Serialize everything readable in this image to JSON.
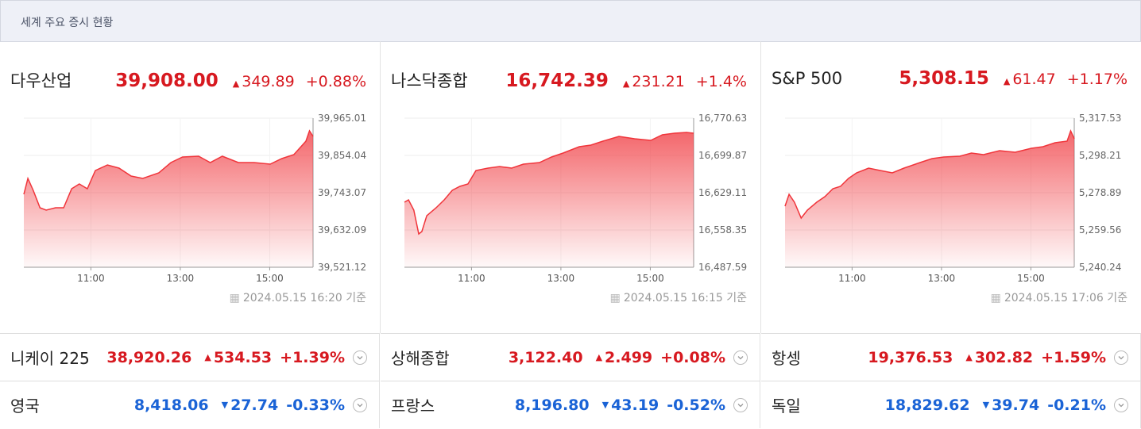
{
  "header": {
    "title": "세계 주요 증시 현황"
  },
  "panels": [
    {
      "name": "다우산업",
      "price": "39,908.00",
      "arrow": "▲",
      "change": "349.89",
      "change_pct": "+0.88%",
      "color": "#d71920",
      "timestamp": "2024.05.15 16:20 기준",
      "chart_data": {
        "type": "line",
        "x": [
          9.5,
          9.59,
          9.71,
          9.86,
          10.0,
          10.21,
          10.39,
          10.57,
          10.74,
          10.92,
          11.1,
          11.37,
          11.63,
          11.9,
          12.16,
          12.52,
          12.79,
          13.05,
          13.41,
          13.67,
          13.94,
          14.3,
          14.65,
          15.01,
          15.27,
          15.54,
          15.81,
          15.89,
          15.97
        ],
        "series": [
          {
            "color": "#f0353b",
            "values": [
              39738.3,
              39785.5,
              39750.1,
              39698.2,
              39691.1,
              39698.2,
              39698.2,
              39754.8,
              39769.0,
              39754.8,
              39809.1,
              39825.7,
              39816.2,
              39792.6,
              39785.5,
              39802.1,
              39832.8,
              39849.3,
              39851.6,
              39832.8,
              39851.6,
              39832.8,
              39832.8,
              39828.0,
              39844.6,
              39856.4,
              39896.5,
              39927.2,
              39910.7
            ]
          }
        ],
        "xlim": [
          9.5,
          15.97
        ],
        "xticks": [
          {
            "value": 11,
            "label": "11:00"
          },
          {
            "value": 13,
            "label": "13:00"
          },
          {
            "value": 15,
            "label": "15:00"
          }
        ],
        "ylim": [
          39521.12,
          39965.01
        ],
        "yticks": [
          {
            "value": 39521.12,
            "label": "39,521.12"
          },
          {
            "value": 39632.09,
            "label": "39,632.09"
          },
          {
            "value": 39743.07,
            "label": "39,743.07"
          },
          {
            "value": 39854.04,
            "label": "39,854.04"
          },
          {
            "value": 39965.01,
            "label": "39,965.01"
          }
        ],
        "grid": true
      }
    },
    {
      "name": "나스닥종합",
      "price": "16,742.39",
      "arrow": "▲",
      "change": "231.21",
      "change_pct": "+1.4%",
      "color": "#d71920",
      "timestamp": "2024.05.15 16:15 기준",
      "chart_data": {
        "type": "line",
        "x": [
          9.5,
          9.59,
          9.71,
          9.82,
          9.89,
          10.0,
          10.21,
          10.39,
          10.57,
          10.74,
          10.92,
          11.1,
          11.37,
          11.63,
          11.9,
          12.16,
          12.52,
          12.79,
          13.05,
          13.41,
          13.67,
          13.94,
          14.3,
          14.65,
          15.01,
          15.27,
          15.54,
          15.81,
          15.97
        ],
        "series": [
          {
            "color": "#f0353b",
            "values": [
              16611.1,
              16615.6,
              16596.0,
              16550.8,
              16555.3,
              16585.5,
              16600.5,
              16615.6,
              16633.6,
              16641.2,
              16645.7,
              16671.3,
              16675.8,
              16678.8,
              16675.8,
              16683.3,
              16686.3,
              16696.9,
              16704.4,
              16716.4,
              16719.4,
              16727.0,
              16736.0,
              16731.5,
              16728.5,
              16739.0,
              16742.0,
              16743.5,
              16742.0
            ]
          }
        ],
        "xlim": [
          9.5,
          15.97
        ],
        "xticks": [
          {
            "value": 11,
            "label": "11:00"
          },
          {
            "value": 13,
            "label": "13:00"
          },
          {
            "value": 15,
            "label": "15:00"
          }
        ],
        "ylim": [
          16487.59,
          16770.63
        ],
        "yticks": [
          {
            "value": 16487.59,
            "label": "16,487.59"
          },
          {
            "value": 16558.35,
            "label": "16,558.35"
          },
          {
            "value": 16629.11,
            "label": "16,629.11"
          },
          {
            "value": 16699.87,
            "label": "16,699.87"
          },
          {
            "value": 16770.63,
            "label": "16,770.63"
          }
        ],
        "grid": true
      }
    },
    {
      "name": "S&P 500",
      "price": "5,308.15",
      "arrow": "▲",
      "change": "61.47",
      "change_pct": "+1.17%",
      "color": "#d71920",
      "timestamp": "2024.05.15 17:06 기준",
      "chart_data": {
        "type": "line",
        "x": [
          9.5,
          9.59,
          9.71,
          9.86,
          10.0,
          10.21,
          10.39,
          10.57,
          10.74,
          10.92,
          11.1,
          11.37,
          11.63,
          11.9,
          12.16,
          12.52,
          12.79,
          13.05,
          13.41,
          13.67,
          13.94,
          14.3,
          14.65,
          15.01,
          15.27,
          15.54,
          15.81,
          15.89,
          15.97
        ],
        "series": [
          {
            "color": "#f0353b",
            "values": [
              5271.9,
              5278.06,
              5273.95,
              5265.73,
              5269.84,
              5273.95,
              5276.83,
              5280.94,
              5282.17,
              5286.28,
              5289.16,
              5291.63,
              5290.39,
              5289.16,
              5291.63,
              5294.51,
              5296.56,
              5297.38,
              5297.79,
              5299.44,
              5298.62,
              5300.67,
              5299.85,
              5301.91,
              5302.73,
              5304.78,
              5305.6,
              5310.95,
              5306.84
            ]
          }
        ],
        "xlim": [
          9.5,
          15.97
        ],
        "xticks": [
          {
            "value": 11,
            "label": "11:00"
          },
          {
            "value": 13,
            "label": "13:00"
          },
          {
            "value": 15,
            "label": "15:00"
          }
        ],
        "ylim": [
          5240.24,
          5317.53
        ],
        "yticks": [
          {
            "value": 5240.24,
            "label": "5,240.24"
          },
          {
            "value": 5259.56,
            "label": "5,259.56"
          },
          {
            "value": 5278.89,
            "label": "5,278.89"
          },
          {
            "value": 5298.21,
            "label": "5,298.21"
          },
          {
            "value": 5317.53,
            "label": "5,317.53"
          }
        ],
        "grid": true
      }
    }
  ],
  "rows": [
    [
      {
        "name": "니케이 225",
        "price": "38,920.26",
        "arrow": "▲",
        "change": "534.53",
        "change_pct": "+1.39%",
        "color": "#d71920"
      },
      {
        "name": "상해종합",
        "price": "3,122.40",
        "arrow": "▲",
        "change": "2.499",
        "change_pct": "+0.08%",
        "color": "#d71920"
      },
      {
        "name": "항셍",
        "price": "19,376.53",
        "arrow": "▲",
        "change": "302.82",
        "change_pct": "+1.59%",
        "color": "#d71920"
      }
    ],
    [
      {
        "name": "영국",
        "price": "8,418.06",
        "arrow": "▼",
        "change": "27.74",
        "change_pct": "-0.33%",
        "color": "#1a63d6"
      },
      {
        "name": "프랑스",
        "price": "8,196.80",
        "arrow": "▼",
        "change": "43.19",
        "change_pct": "-0.52%",
        "color": "#1a63d6"
      },
      {
        "name": "독일",
        "price": "18,829.62",
        "arrow": "▼",
        "change": "39.74",
        "change_pct": "-0.21%",
        "color": "#1a63d6"
      }
    ]
  ]
}
